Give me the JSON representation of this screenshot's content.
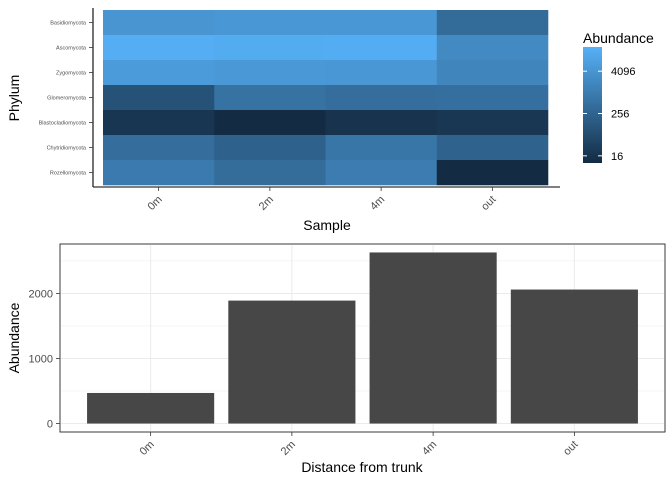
{
  "chart_data": [
    {
      "type": "heatmap",
      "xlabel": "Sample",
      "ylabel": "Phylum",
      "x_categories": [
        "0m",
        "2m",
        "4m",
        "out"
      ],
      "y_categories": [
        "Basidiomycota",
        "Ascomycota",
        "Zygomycota",
        "Glomeromycota",
        "Blastocladiomycota",
        "Chytridiomycota",
        "Rozellomycota"
      ],
      "color_scale": "log2",
      "legend": {
        "title": "Abundance",
        "ticks": [
          16,
          256,
          4096
        ],
        "tick_labels": [
          "16",
          "256",
          "4096"
        ],
        "position": "right",
        "low_color": "#132B43",
        "high_color": "#56B1F7",
        "min": 10,
        "max": 20000
      },
      "values": [
        [
          4200,
          4500,
          4800,
          380
        ],
        [
          17000,
          15000,
          16000,
          2200
        ],
        [
          5800,
          5000,
          4500,
          1700
        ],
        [
          90,
          550,
          450,
          480
        ],
        [
          18,
          10,
          16,
          20
        ],
        [
          450,
          220,
          700,
          230
        ],
        [
          900,
          400,
          1000,
          10
        ]
      ]
    },
    {
      "type": "bar",
      "xlabel": "Distance from trunk",
      "ylabel": "Abundance",
      "categories": [
        "0m",
        "2m",
        "4m",
        "out"
      ],
      "values": [
        470,
        1890,
        2630,
        2060
      ],
      "ylim": [
        -130,
        2760
      ],
      "yticks": [
        0,
        1000,
        2000
      ],
      "ytick_labels": [
        "0",
        "1000",
        "2000"
      ],
      "bar_color": "#474747",
      "grid": true
    }
  ]
}
